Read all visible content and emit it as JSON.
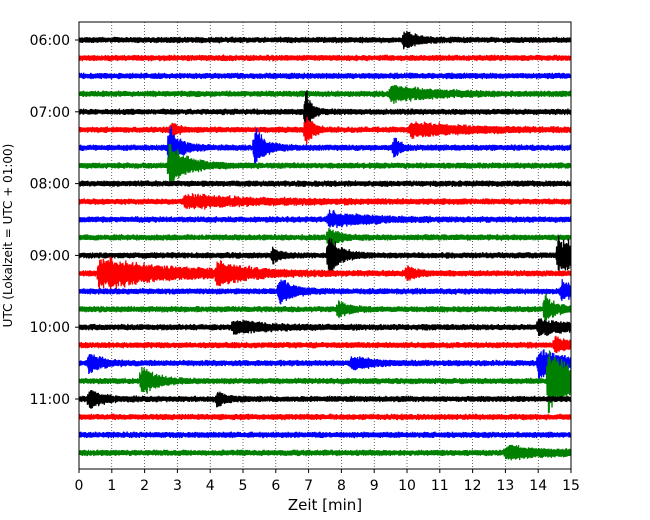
{
  "chart_data": {
    "type": "line",
    "chart_kind": "seismogram-helicorder",
    "xlabel": "Zeit  [min]",
    "ylabel": "UTC (Lokalzeit = UTC + 01:00)",
    "xlim": [
      0,
      15
    ],
    "x_ticks": [
      0,
      1,
      2,
      3,
      4,
      5,
      6,
      7,
      8,
      9,
      10,
      11,
      12,
      13,
      14,
      15
    ],
    "x_tick_labels": [
      "0",
      "1",
      "2",
      "3",
      "4",
      "5",
      "6",
      "7",
      "8",
      "9",
      "10",
      "11",
      "12",
      "13",
      "14",
      "15"
    ],
    "y_tick_labels": [
      "06:00",
      "07:00",
      "08:00",
      "09:00",
      "10:00",
      "11:00"
    ],
    "y_tick_traces": [
      0,
      4,
      8,
      12,
      16,
      20
    ],
    "trace_count": 24,
    "trace_start": "06:00",
    "trace_interval_minutes": 15,
    "trace_colors": [
      "#000000",
      "#ff0000",
      "#0000ff",
      "#008000"
    ],
    "grid": {
      "vertical": true,
      "style": "dotted"
    },
    "legend": "none",
    "events": [
      {
        "trace": 0,
        "minute": 9.9,
        "amp": 0.55,
        "dur": 0.4
      },
      {
        "trace": 3,
        "minute": 9.5,
        "amp": 0.5,
        "dur": 1.2
      },
      {
        "trace": 4,
        "minute": 6.9,
        "amp": 1.6,
        "dur": 0.15
      },
      {
        "trace": 5,
        "minute": 6.9,
        "amp": 1.0,
        "dur": 0.2
      },
      {
        "trace": 5,
        "minute": 10.1,
        "amp": 0.45,
        "dur": 1.5
      },
      {
        "trace": 5,
        "minute": 2.8,
        "amp": 0.45,
        "dur": 0.2
      },
      {
        "trace": 6,
        "minute": 2.75,
        "amp": 1.4,
        "dur": 0.3
      },
      {
        "trace": 6,
        "minute": 5.35,
        "amp": 1.2,
        "dur": 0.3
      },
      {
        "trace": 6,
        "minute": 9.6,
        "amp": 0.8,
        "dur": 0.15
      },
      {
        "trace": 7,
        "minute": 2.75,
        "amp": 1.4,
        "dur": 0.5
      },
      {
        "trace": 9,
        "minute": 3.2,
        "amp": 0.4,
        "dur": 2.0
      },
      {
        "trace": 10,
        "minute": 7.6,
        "amp": 0.5,
        "dur": 1.0
      },
      {
        "trace": 11,
        "minute": 7.6,
        "amp": 0.6,
        "dur": 0.3
      },
      {
        "trace": 12,
        "minute": 5.9,
        "amp": 0.5,
        "dur": 0.2
      },
      {
        "trace": 12,
        "minute": 7.6,
        "amp": 1.5,
        "dur": 0.3
      },
      {
        "trace": 12,
        "minute": 14.6,
        "amp": 1.2,
        "dur": 0.8
      },
      {
        "trace": 13,
        "minute": 0.6,
        "amp": 1.0,
        "dur": 2.0
      },
      {
        "trace": 13,
        "minute": 4.2,
        "amp": 0.65,
        "dur": 0.8
      },
      {
        "trace": 13,
        "minute": 10.0,
        "amp": 0.4,
        "dur": 0.3
      },
      {
        "trace": 14,
        "minute": 6.1,
        "amp": 0.9,
        "dur": 0.4
      },
      {
        "trace": 14,
        "minute": 14.7,
        "amp": 0.6,
        "dur": 0.5
      },
      {
        "trace": 15,
        "minute": 7.9,
        "amp": 0.5,
        "dur": 0.3
      },
      {
        "trace": 15,
        "minute": 14.2,
        "amp": 0.9,
        "dur": 0.3
      },
      {
        "trace": 16,
        "minute": 4.7,
        "amp": 0.4,
        "dur": 1.0
      },
      {
        "trace": 16,
        "minute": 14.0,
        "amp": 0.5,
        "dur": 1.0
      },
      {
        "trace": 17,
        "minute": 14.5,
        "amp": 0.5,
        "dur": 0.4
      },
      {
        "trace": 18,
        "minute": 0.3,
        "amp": 0.6,
        "dur": 0.4
      },
      {
        "trace": 18,
        "minute": 8.3,
        "amp": 0.35,
        "dur": 0.6
      },
      {
        "trace": 18,
        "minute": 14.0,
        "amp": 0.9,
        "dur": 0.8
      },
      {
        "trace": 19,
        "minute": 1.9,
        "amp": 1.0,
        "dur": 0.4
      },
      {
        "trace": 19,
        "minute": 14.3,
        "amp": 2.0,
        "dur": 0.9
      },
      {
        "trace": 20,
        "minute": 0.3,
        "amp": 0.6,
        "dur": 0.4
      },
      {
        "trace": 20,
        "minute": 4.2,
        "amp": 0.4,
        "dur": 0.3
      },
      {
        "trace": 23,
        "minute": 13.0,
        "amp": 0.4,
        "dur": 1.2
      }
    ]
  }
}
